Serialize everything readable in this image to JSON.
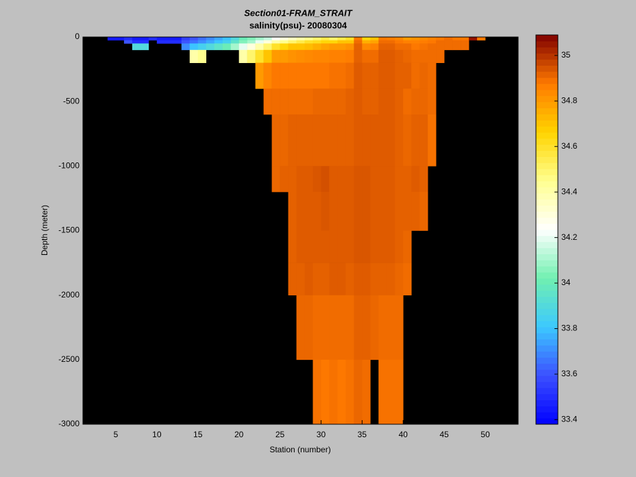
{
  "chart_data": {
    "type": "heatmap",
    "title": "Section01-FRAM_STRAIT",
    "subtitle": "salinity(psu)- 20080304",
    "x_label": "Station (number)",
    "y_label": "Depth (meter)",
    "xlim": [
      1,
      54
    ],
    "xticks": [
      5,
      10,
      15,
      20,
      25,
      30,
      35,
      40,
      45,
      50
    ],
    "ylim": [
      -3000,
      0
    ],
    "yticks": [
      -3000,
      -2500,
      -2000,
      -1500,
      -1000,
      -500,
      0
    ],
    "clim": [
      33.38,
      35.09
    ],
    "cticks": [
      33.4,
      33.6,
      33.8,
      34,
      34.2,
      34.4,
      34.6,
      34.8,
      35
    ],
    "colormap": [
      "#0000ff",
      "#3c50ff",
      "#3cc8ff",
      "#70f0b0",
      "#ffffff",
      "#ffff90",
      "#ffd400",
      "#ff7a00",
      "#800000"
    ],
    "background_color": "#000000",
    "stations": [
      4,
      5,
      6,
      7,
      8,
      9,
      10,
      11,
      12,
      13,
      14,
      15,
      16,
      17,
      18,
      19,
      20,
      21,
      22,
      23,
      24,
      25,
      26,
      27,
      28,
      29,
      30,
      31,
      32,
      33,
      34,
      35,
      36,
      37,
      38,
      39,
      40,
      41,
      42,
      43,
      44,
      45,
      46,
      47,
      48,
      49
    ],
    "depth_edges": [
      0,
      -25,
      -50,
      -100,
      -200,
      -400,
      -600,
      -1000,
      -1200,
      -1500,
      -1750,
      -2000,
      -2500,
      -3000
    ],
    "profiles": [
      [
        33.45
      ],
      [
        33.45
      ],
      [
        33.5,
        33.6
      ],
      [
        33.45,
        33.5,
        33.9
      ],
      [
        33.45,
        33.5,
        33.9
      ],
      [
        33.5
      ],
      [
        33.45,
        33.5
      ],
      [
        33.45,
        33.5
      ],
      [
        33.45,
        33.5
      ],
      [
        33.55,
        33.6,
        33.7
      ],
      [
        33.6,
        33.65,
        33.8,
        34.4
      ],
      [
        33.65,
        33.7,
        33.85,
        34.45
      ],
      [
        33.7,
        33.75,
        33.9
      ],
      [
        33.75,
        33.8,
        33.95
      ],
      [
        33.8,
        33.85,
        34.0
      ],
      [
        33.9,
        33.95,
        34.1
      ],
      [
        34.0,
        34.05,
        34.2,
        34.4
      ],
      [
        34.05,
        34.1,
        34.3,
        34.5
      ],
      [
        34.1,
        34.2,
        34.4,
        34.6,
        34.8
      ],
      [
        34.15,
        34.3,
        34.5,
        34.7,
        34.85,
        34.9
      ],
      [
        34.25,
        34.4,
        34.6,
        34.8,
        34.88,
        34.9,
        34.91,
        34.91
      ],
      [
        34.3,
        34.45,
        34.65,
        34.8,
        34.88,
        34.9,
        34.91,
        34.92
      ],
      [
        34.35,
        34.5,
        34.7,
        34.82,
        34.88,
        34.9,
        34.92,
        34.92,
        34.92,
        34.92,
        34.92
      ],
      [
        34.4,
        34.55,
        34.7,
        34.83,
        34.88,
        34.9,
        34.92,
        34.93,
        34.93,
        34.93,
        34.92,
        34.91
      ],
      [
        34.45,
        34.6,
        34.72,
        34.84,
        34.88,
        34.9,
        34.92,
        34.93,
        34.93,
        34.93,
        34.93,
        34.91
      ],
      [
        34.5,
        34.62,
        34.75,
        34.85,
        34.88,
        34.91,
        34.92,
        34.94,
        34.93,
        34.93,
        34.92,
        34.9,
        34.89
      ],
      [
        34.55,
        34.65,
        34.78,
        34.85,
        34.88,
        34.91,
        34.92,
        34.95,
        34.94,
        34.93,
        34.92,
        34.9,
        34.88
      ],
      [
        34.5,
        34.65,
        34.8,
        34.86,
        34.89,
        34.91,
        34.92,
        34.93,
        34.93,
        34.93,
        34.93,
        34.9,
        34.89
      ],
      [
        34.55,
        34.7,
        34.8,
        34.86,
        34.89,
        34.91,
        34.92,
        34.93,
        34.93,
        34.93,
        34.93,
        34.9,
        34.88
      ],
      [
        34.6,
        34.7,
        34.82,
        34.87,
        34.9,
        34.92,
        34.92,
        34.93,
        34.93,
        34.93,
        34.92,
        34.9,
        34.89
      ],
      [
        34.88,
        34.9,
        34.92,
        34.92,
        34.93,
        34.93,
        34.93,
        34.94,
        34.94,
        34.94,
        34.93,
        34.92,
        34.91
      ],
      [
        34.65,
        34.75,
        34.84,
        34.9,
        34.92,
        34.92,
        34.93,
        34.94,
        34.94,
        34.94,
        34.93,
        34.92,
        34.9
      ],
      [
        34.7,
        34.78,
        34.86,
        34.9,
        34.92,
        34.92,
        34.93,
        34.93,
        34.93,
        34.93,
        34.92,
        34.91
      ],
      [
        34.88,
        34.9,
        34.92,
        34.93,
        34.93,
        34.93,
        34.93,
        34.93,
        34.93,
        34.93,
        34.92,
        34.9,
        34.89
      ],
      [
        34.87,
        34.9,
        34.92,
        34.93,
        34.93,
        34.93,
        34.93,
        34.93,
        34.93,
        34.93,
        34.92,
        34.9,
        34.89
      ],
      [
        34.85,
        34.88,
        34.9,
        34.92,
        34.92,
        34.92,
        34.92,
        34.92,
        34.92,
        34.92,
        34.91,
        34.9,
        34.89
      ],
      [
        34.8,
        34.86,
        34.9,
        34.91,
        34.92,
        34.9,
        34.91,
        34.92,
        34.92,
        34.91,
        34.9
      ],
      [
        34.82,
        34.86,
        34.88,
        34.9,
        34.9,
        34.91,
        34.92,
        34.93,
        34.92
      ],
      [
        34.84,
        34.87,
        34.89,
        34.9,
        34.91,
        34.91,
        34.92,
        34.92,
        34.91
      ],
      [
        34.86,
        34.88,
        34.9,
        34.9,
        34.9,
        34.9,
        34.89
      ],
      [
        34.88,
        34.9,
        34.9,
        34.9
      ],
      [
        34.9,
        34.9,
        34.9
      ],
      [
        34.88,
        34.9,
        34.9
      ],
      [
        34.88,
        34.9,
        34.9
      ],
      [
        35.06
      ],
      [
        34.88
      ]
    ]
  }
}
